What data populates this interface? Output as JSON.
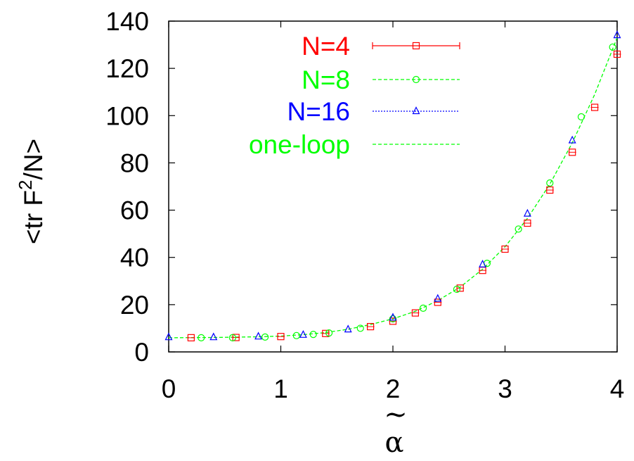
{
  "chart_data": {
    "type": "scatter",
    "xlabel": "α",
    "xlabel_accent": "~",
    "ylabel": "<tr F²/N>",
    "xlim": [
      0,
      4
    ],
    "ylim": [
      0,
      140
    ],
    "x_ticks": [
      "0",
      "1",
      "2",
      "3",
      "4"
    ],
    "y_ticks": [
      "0",
      "20",
      "40",
      "60",
      "80",
      "100",
      "120",
      "140"
    ],
    "x_tick_values": [
      0,
      1,
      2,
      3,
      4
    ],
    "y_tick_values": [
      0,
      20,
      40,
      60,
      80,
      100,
      120,
      140
    ],
    "grid": false,
    "legend_position": "top-left",
    "series": [
      {
        "name": "N=4",
        "color": "#ff0000",
        "marker": "square",
        "line": "solid",
        "points": [
          [
            0.2,
            6.0
          ],
          [
            0.6,
            6.1
          ],
          [
            1.0,
            6.5
          ],
          [
            1.4,
            7.8
          ],
          [
            1.8,
            10.7
          ],
          [
            2.0,
            13.0
          ],
          [
            2.2,
            16.5
          ],
          [
            2.4,
            21.0
          ],
          [
            2.6,
            27.0
          ],
          [
            2.8,
            34.5
          ],
          [
            3.0,
            43.5
          ],
          [
            3.2,
            54.5
          ],
          [
            3.4,
            68.5
          ],
          [
            3.6,
            84.5
          ],
          [
            3.8,
            103.5
          ],
          [
            4.0,
            126.0
          ]
        ]
      },
      {
        "name": "N=8",
        "color": "#00ff00",
        "marker": "circle",
        "line": "dashed",
        "points": [
          [
            0.29,
            6.0
          ],
          [
            0.57,
            6.0
          ],
          [
            0.86,
            6.3
          ],
          [
            1.14,
            6.9
          ],
          [
            1.29,
            7.4
          ],
          [
            1.43,
            8.0
          ],
          [
            1.71,
            10.0
          ],
          [
            2.0,
            14.0
          ],
          [
            2.27,
            18.5
          ],
          [
            2.57,
            26.5
          ],
          [
            2.84,
            37.5
          ],
          [
            3.12,
            52.0
          ],
          [
            3.4,
            71.5
          ],
          [
            3.68,
            99.5
          ],
          [
            3.96,
            129.0
          ]
        ]
      },
      {
        "name": "N=16",
        "color": "#0000ff",
        "marker": "triangle",
        "line": "dotted",
        "points": [
          [
            0.0,
            6.2
          ],
          [
            0.4,
            6.2
          ],
          [
            0.8,
            6.5
          ],
          [
            1.2,
            7.2
          ],
          [
            1.6,
            9.5
          ],
          [
            2.0,
            14.5
          ],
          [
            2.4,
            22.5
          ],
          [
            2.8,
            37.0
          ],
          [
            3.2,
            58.5
          ],
          [
            3.6,
            89.5
          ],
          [
            4.0,
            134.0
          ]
        ]
      },
      {
        "name": "one-loop",
        "color": "#00ff00",
        "marker": "none",
        "line": "dashed",
        "curve": [
          [
            0.0,
            6.0
          ],
          [
            0.4,
            6.1
          ],
          [
            0.8,
            6.4
          ],
          [
            1.0,
            6.7
          ],
          [
            1.2,
            7.3
          ],
          [
            1.4,
            8.2
          ],
          [
            1.6,
            9.6
          ],
          [
            1.8,
            11.6
          ],
          [
            2.0,
            14.0
          ],
          [
            2.2,
            17.2
          ],
          [
            2.4,
            21.7
          ],
          [
            2.6,
            27.4
          ],
          [
            2.8,
            35.0
          ],
          [
            3.0,
            44.5
          ],
          [
            3.2,
            56.5
          ],
          [
            3.4,
            71.0
          ],
          [
            3.6,
            88.5
          ],
          [
            3.8,
            109.0
          ],
          [
            4.0,
            133.0
          ]
        ]
      }
    ]
  }
}
